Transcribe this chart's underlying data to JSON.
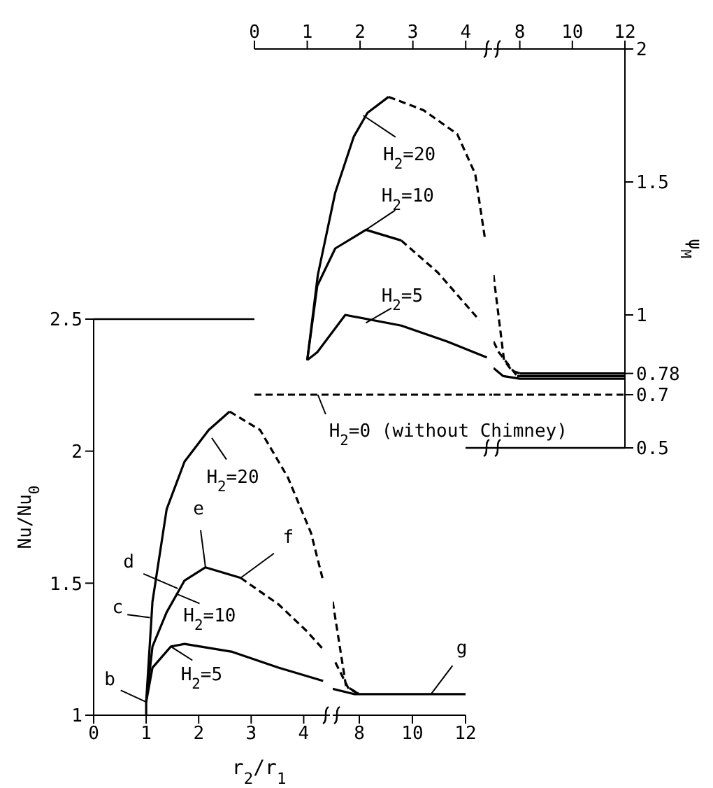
{
  "chart_data": [
    {
      "type": "line",
      "xlim": [
        0,
        4.5
      ],
      "xticks": [
        0,
        1,
        2,
        3,
        4
      ],
      "ylim": [
        0.5,
        2
      ],
      "tick_labels": "x",
      "series": [
        {
          "color": "#000000",
          "line_style": "solid",
          "x": [
            1,
            1.2,
            1.53,
            1.88,
            2.14,
            2.54
          ],
          "values": [
            0.83,
            1.15,
            1.46,
            1.67,
            1.76,
            1.82
          ]
        },
        {
          "color": "#000000",
          "line_style": "dashed",
          "x": [
            2.54,
            3.2,
            3.84,
            4.18,
            4.37
          ],
          "values": [
            1.82,
            1.77,
            1.68,
            1.53,
            1.28
          ]
        },
        {
          "color": "#000000",
          "line_style": "solid",
          "x": [
            1,
            1.19,
            1.53,
            2.11,
            2.78
          ],
          "values": [
            0.83,
            1.11,
            1.25,
            1.32,
            1.28
          ]
        },
        {
          "color": "#000000",
          "line_style": "dashed",
          "x": [
            2.78,
            3.47,
            4.26
          ],
          "values": [
            1.28,
            1.16,
            0.98
          ]
        },
        {
          "color": "#000000",
          "line_style": "solid",
          "x": [
            1,
            1.19,
            1.72,
            2.78,
            3.65,
            4.4
          ],
          "values": [
            0.83,
            0.86,
            1.0,
            0.96,
            0.9,
            0.84
          ]
        },
        {
          "color": "#000000",
          "line_style": "dashed",
          "x": [
            0,
            4.5
          ],
          "values": [
            0.7,
            0.7
          ]
        }
      ],
      "annotations": [
        {
          "text": "H$_{2}$=20",
          "x": 2.06,
          "y": 1.75
        },
        {
          "text": "H$_{2}$=10",
          "x": 2.11,
          "y": 1.32
        },
        {
          "text": "H$_{2}$=5",
          "x": 2.11,
          "y": 0.97
        },
        {
          "text": "H$_{2}$=0 (without Chimney)",
          "x": 1.2,
          "y": 0.7
        }
      ]
    },
    {
      "type": "line",
      "xlim": [
        7,
        12
      ],
      "xticks": [
        8,
        10,
        12
      ],
      "ylim": [
        0.5,
        2
      ],
      "yticks": [
        0.5,
        0.7,
        0.78,
        1,
        1.5,
        2
      ],
      "ylabel": "ψ$_{M}$",
      "series": [
        {
          "color": "#000000",
          "line_style": "dashed",
          "x": [
            7,
            7.4,
            7.7,
            8
          ],
          "values": [
            1.15,
            0.83,
            0.79,
            0.78
          ]
        },
        {
          "color": "#000000",
          "line_style": "solid",
          "x": [
            8,
            12
          ],
          "values": [
            0.78,
            0.78
          ]
        },
        {
          "color": "#000000",
          "line_style": "dashed",
          "x": [
            7,
            7.2,
            7.9
          ],
          "values": [
            0.9,
            0.86,
            0.77
          ]
        },
        {
          "color": "#000000",
          "line_style": "solid",
          "x": [
            7.9,
            12
          ],
          "values": [
            0.77,
            0.77
          ]
        },
        {
          "color": "#000000",
          "line_style": "solid",
          "x": [
            7,
            7.37,
            8,
            12
          ],
          "values": [
            0.8,
            0.77,
            0.76,
            0.76
          ]
        },
        {
          "color": "#000000",
          "line_style": "dashed",
          "x": [
            7,
            12
          ],
          "values": [
            0.7,
            0.7
          ]
        }
      ]
    },
    {
      "type": "line",
      "xlim": [
        0,
        4.5
      ],
      "xticks": [
        0,
        1,
        2,
        3,
        4
      ],
      "ylim": [
        1,
        2.5
      ],
      "yticks": [
        1,
        1.5,
        2,
        2.5
      ],
      "xlabel": "r$_{2}$/r$_{1}$",
      "ylabel": "Nu/Nu$_{0}$",
      "series": [
        {
          "color": "#000000",
          "line_style": "solid",
          "x": [
            1,
            1,
            1.12,
            1.39,
            1.73,
            2.19,
            2.59
          ],
          "values": [
            1,
            1.05,
            1.43,
            1.78,
            1.96,
            2.08,
            2.15
          ]
        },
        {
          "color": "#000000",
          "line_style": "dashed",
          "x": [
            2.59,
            3.17,
            3.7,
            4.14,
            4.37
          ],
          "values": [
            2.15,
            2.08,
            1.9,
            1.69,
            1.51
          ]
        },
        {
          "color": "#000000",
          "line_style": "solid",
          "x": [
            1,
            1.12,
            1.39,
            1.73,
            2.13,
            2.8
          ],
          "values": [
            1.05,
            1.26,
            1.39,
            1.51,
            1.56,
            1.52
          ]
        },
        {
          "color": "#000000",
          "line_style": "dashed",
          "x": [
            2.8,
            3.52,
            4.05,
            4.37
          ],
          "values": [
            1.52,
            1.42,
            1.32,
            1.25
          ]
        },
        {
          "color": "#000000",
          "line_style": "solid",
          "x": [
            1,
            1.12,
            1.47,
            1.73,
            2.64,
            3.52,
            4.37
          ],
          "values": [
            1.05,
            1.18,
            1.26,
            1.27,
            1.24,
            1.18,
            1.13
          ]
        }
      ],
      "annotations": [
        {
          "text": "H$_{2}$=20",
          "x": 2.25,
          "y": 2.05
        },
        {
          "text": "H$_{2}$=10",
          "x": 1.57,
          "y": 1.46
        },
        {
          "text": "H$_{2}$=5",
          "x": 1.47,
          "y": 1.26
        },
        {
          "text": "b",
          "x": 1,
          "y": 1.05
        },
        {
          "text": "c",
          "x": 1.07,
          "y": 1.37
        },
        {
          "text": "d",
          "x": 1.6,
          "y": 1.48
        },
        {
          "text": "e",
          "x": 2.13,
          "y": 1.56
        },
        {
          "text": "f",
          "x": 2.8,
          "y": 1.52
        }
      ]
    },
    {
      "type": "line",
      "xlim": [
        7,
        12
      ],
      "xticks": [
        8,
        10,
        12
      ],
      "ylim": [
        1,
        2.5
      ],
      "tick_labels": "x",
      "series": [
        {
          "color": "#000000",
          "line_style": "dashed",
          "x": [
            7,
            7.5,
            8
          ],
          "values": [
            1.43,
            1.11,
            1.08
          ]
        },
        {
          "color": "#000000",
          "line_style": "dashed",
          "x": [
            7.1,
            7.6,
            8
          ],
          "values": [
            1.2,
            1.1,
            1.08
          ]
        },
        {
          "color": "#000000",
          "line_style": "solid",
          "x": [
            7,
            7.8,
            8,
            12
          ],
          "values": [
            1.1,
            1.08,
            1.08,
            1.08
          ]
        }
      ],
      "annotations": [
        {
          "text": "g",
          "x": 10.7,
          "y": 1.08
        }
      ]
    }
  ]
}
